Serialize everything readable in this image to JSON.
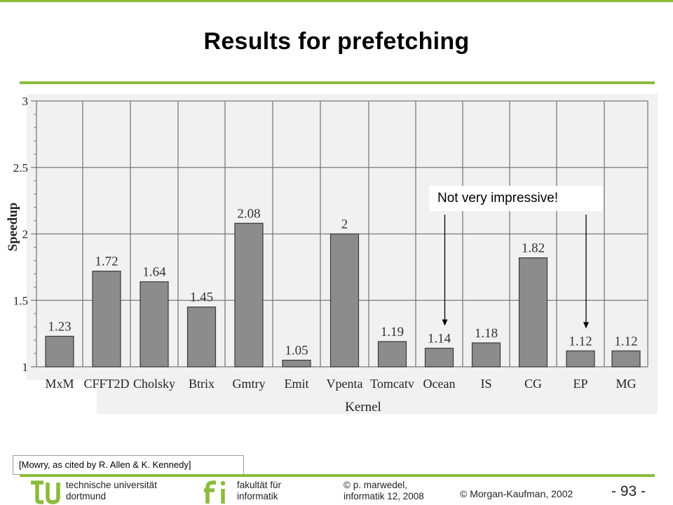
{
  "slide": {
    "title": "Results for prefetching",
    "callout": "Not very impressive!",
    "citation": "[Mowry, as cited by R. Allen & K. Kennedy]",
    "copyright": "© Morgan-Kaufman, 2002",
    "page_number": "- 93 -",
    "footer": {
      "university_line1": "technische universität",
      "university_line2": "dortmund",
      "faculty_line1": "fakultät für",
      "faculty_line2": "informatik",
      "author_line1": "p. marwedel,",
      "author_line2": "informatik 12,  2008"
    },
    "accent_color": "#8cbb3c"
  },
  "chart_data": {
    "type": "bar",
    "ylabel": "Speedup",
    "xlabel": "Kernel",
    "ylim": [
      1,
      3
    ],
    "yticks": [
      "1",
      "1.5",
      "2",
      "2.5",
      "3"
    ],
    "grid": true,
    "categories": [
      "MxM",
      "CFFT2D",
      "Cholsky",
      "Btrix",
      "Gmtry",
      "Emit",
      "Vpenta",
      "Tomcatv",
      "Ocean",
      "IS",
      "CG",
      "EP",
      "MG"
    ],
    "values": [
      1.23,
      1.72,
      1.64,
      1.45,
      2.08,
      1.05,
      2,
      1.19,
      1.14,
      1.18,
      1.82,
      1.12,
      1.12
    ],
    "value_labels": [
      "1.23",
      "1.72",
      "1.64",
      "1.45",
      "2.08",
      "1.05",
      "2",
      "1.19",
      "1.14",
      "1.18",
      "1.82",
      "1.12",
      "1.12"
    ],
    "bar_color": "#8c8c8c",
    "annotated_categories": [
      "Ocean",
      "EP"
    ]
  }
}
